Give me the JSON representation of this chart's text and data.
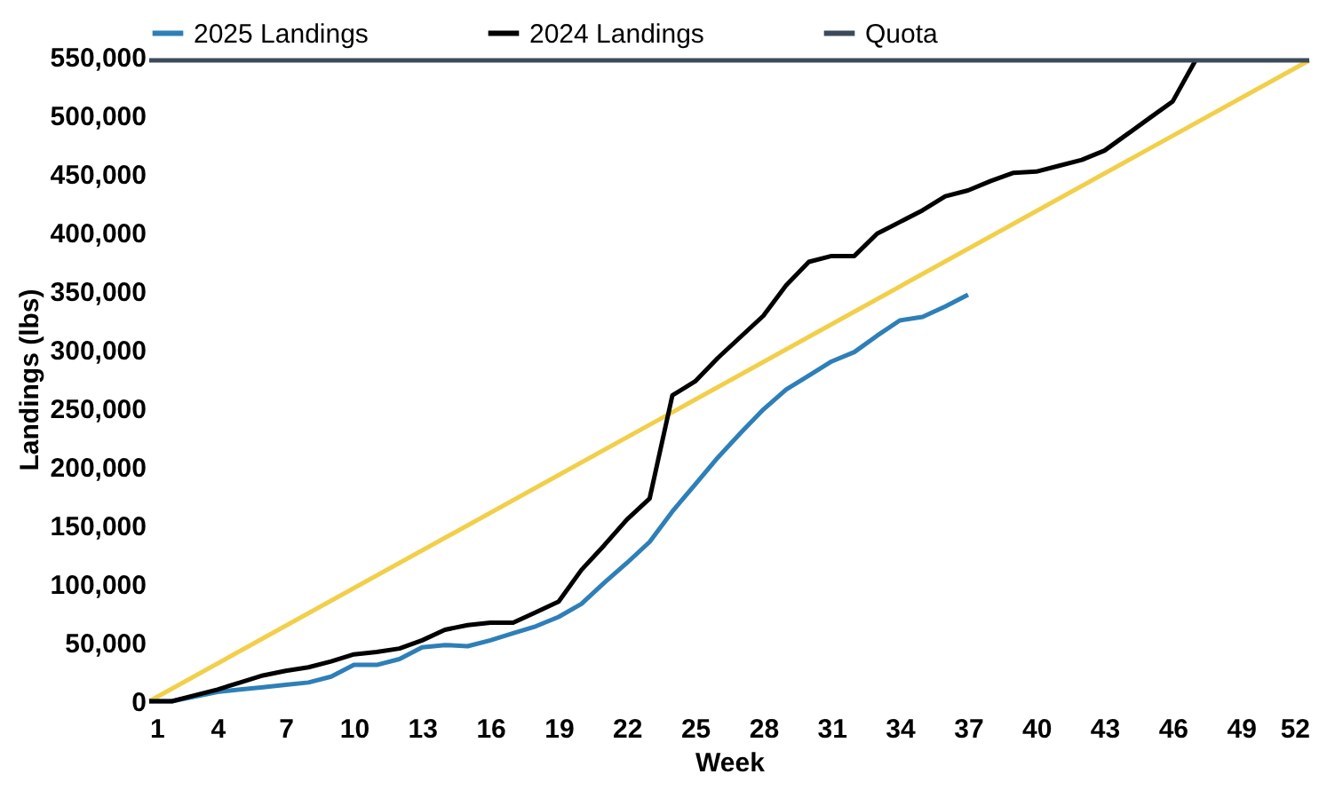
{
  "chart_data": {
    "type": "line",
    "xlabel": "Week",
    "ylabel": "Landings (lbs)",
    "x": [
      1,
      2,
      3,
      4,
      5,
      6,
      7,
      8,
      9,
      10,
      11,
      12,
      13,
      14,
      15,
      16,
      17,
      18,
      19,
      20,
      21,
      22,
      23,
      24,
      25,
      26,
      27,
      28,
      29,
      30,
      31,
      32,
      33,
      34,
      35,
      36,
      37,
      38,
      39,
      40,
      41,
      42,
      43,
      44,
      45,
      46,
      47
    ],
    "series": [
      {
        "name": "2025 Landings",
        "color": "#2e7fb8",
        "x": [
          1,
          2,
          3,
          4,
          5,
          6,
          7,
          8,
          9,
          10,
          11,
          12,
          13,
          14,
          15,
          16,
          17,
          18,
          19,
          20,
          21,
          22,
          23,
          24,
          25,
          26,
          27,
          28,
          29,
          30,
          31,
          32,
          33,
          34,
          35,
          36,
          37
        ],
        "values": [
          0,
          0,
          4000,
          8000,
          10000,
          12000,
          14000,
          16000,
          21000,
          31000,
          31000,
          36000,
          46000,
          48000,
          47000,
          52000,
          58000,
          64000,
          72000,
          83000,
          101000,
          118000,
          136000,
          162000,
          185000,
          208000,
          229000,
          249000,
          266000,
          278000,
          290000,
          298000,
          312000,
          325000,
          328000,
          337000,
          347000
        ]
      },
      {
        "name": "2024 Landings",
        "color": "#000000",
        "values": [
          0,
          0,
          5000,
          10000,
          16000,
          22000,
          26000,
          29000,
          34000,
          40000,
          42000,
          45000,
          52000,
          61000,
          65000,
          67000,
          67000,
          76000,
          85000,
          112000,
          133000,
          155000,
          173000,
          261000,
          273000,
          293000,
          311000,
          329000,
          355000,
          375000,
          380000,
          380000,
          399000,
          409000,
          419000,
          431000,
          436000,
          444000,
          451000,
          452000,
          457000,
          462000,
          470000,
          484000,
          498000,
          512000,
          547000
        ]
      },
      {
        "name": "Quota",
        "color": "#3d4a5c",
        "x": [
          1,
          52
        ],
        "values": [
          547000,
          547000
        ]
      },
      {
        "color": "#f2cf4a",
        "x": [
          1,
          52
        ],
        "values": [
          0,
          547000
        ]
      }
    ],
    "xlim": [
      1,
      52
    ],
    "xticks": [
      1,
      4,
      7,
      10,
      13,
      16,
      19,
      22,
      25,
      28,
      31,
      34,
      37,
      40,
      43,
      46,
      49,
      52
    ],
    "ylim": [
      0,
      550000
    ],
    "yticks": [
      0,
      {
        "value": 50000,
        "label": "50,000"
      },
      {
        "value": 100000,
        "label": "100,000"
      },
      {
        "value": 150000,
        "label": "150,000"
      },
      {
        "value": 200000,
        "label": "200,000"
      },
      {
        "value": 250000,
        "label": "250,000"
      },
      {
        "value": 300000,
        "label": "300,000"
      },
      {
        "value": 350000,
        "label": "350,000"
      },
      {
        "value": 400000,
        "label": "400,000"
      },
      {
        "value": 450000,
        "label": "450,000"
      },
      {
        "value": 500000,
        "label": "500,000"
      },
      {
        "value": 550000,
        "label": "550,000"
      }
    ],
    "grid": false,
    "legend": "top",
    "line_style": "solid",
    "marker": "none"
  }
}
